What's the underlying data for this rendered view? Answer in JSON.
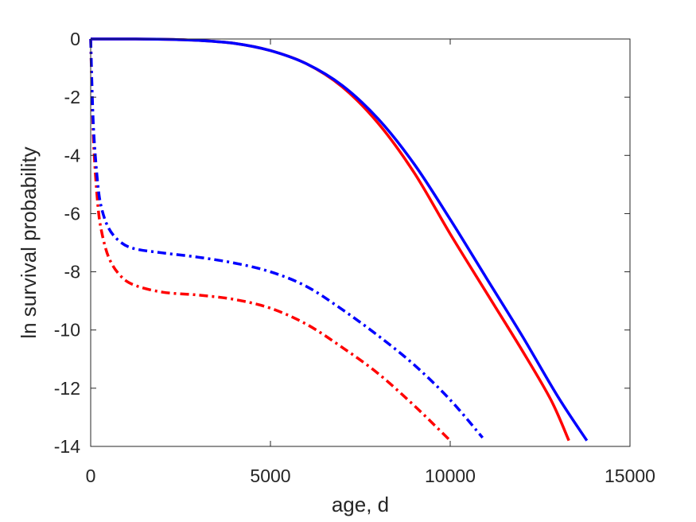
{
  "chart_data": {
    "type": "line",
    "title": "",
    "xlabel": "age, d",
    "ylabel": "ln survival probability",
    "xlim": [
      0,
      15000
    ],
    "ylim": [
      -14,
      0
    ],
    "x_ticks": [
      0,
      5000,
      10000,
      15000
    ],
    "x_tick_labels": [
      "0",
      "5000",
      "10000",
      "15000"
    ],
    "y_ticks": [
      0,
      -2,
      -4,
      -6,
      -8,
      -10,
      -12,
      -14
    ],
    "y_tick_labels": [
      "0",
      "-2",
      "-4",
      "-6",
      "-8",
      "-10",
      "-12",
      "-14"
    ],
    "grid": false,
    "box": true,
    "series": [
      {
        "color": "#ff0000",
        "style": "solid",
        "points": [
          [
            0,
            0
          ],
          [
            1000,
            0
          ],
          [
            2000,
            -0.01
          ],
          [
            3000,
            -0.05
          ],
          [
            4000,
            -0.15
          ],
          [
            5000,
            -0.4
          ],
          [
            6000,
            -0.85
          ],
          [
            7000,
            -1.65
          ],
          [
            8000,
            -2.9
          ],
          [
            9000,
            -4.6
          ],
          [
            10000,
            -6.7
          ],
          [
            11000,
            -8.7
          ],
          [
            12000,
            -10.7
          ],
          [
            12800,
            -12.4
          ],
          [
            13300,
            -13.8
          ]
        ]
      },
      {
        "color": "#0000ff",
        "style": "solid",
        "points": [
          [
            0,
            0
          ],
          [
            1000,
            0
          ],
          [
            2000,
            -0.01
          ],
          [
            3000,
            -0.05
          ],
          [
            4000,
            -0.15
          ],
          [
            5000,
            -0.4
          ],
          [
            6000,
            -0.85
          ],
          [
            7000,
            -1.6
          ],
          [
            8000,
            -2.75
          ],
          [
            9000,
            -4.3
          ],
          [
            10000,
            -6.2
          ],
          [
            11000,
            -8.2
          ],
          [
            12000,
            -10.2
          ],
          [
            13000,
            -12.3
          ],
          [
            13800,
            -13.8
          ]
        ]
      },
      {
        "color": "#ff0000",
        "style": "dashdot",
        "points": [
          [
            0,
            0
          ],
          [
            50,
            -2.5
          ],
          [
            100,
            -4.0
          ],
          [
            200,
            -5.7
          ],
          [
            300,
            -6.6
          ],
          [
            500,
            -7.5
          ],
          [
            800,
            -8.1
          ],
          [
            1200,
            -8.45
          ],
          [
            2000,
            -8.7
          ],
          [
            3000,
            -8.8
          ],
          [
            4000,
            -8.95
          ],
          [
            5000,
            -9.25
          ],
          [
            6000,
            -9.8
          ],
          [
            7000,
            -10.6
          ],
          [
            8000,
            -11.5
          ],
          [
            9000,
            -12.6
          ],
          [
            10000,
            -13.8
          ]
        ]
      },
      {
        "color": "#0000ff",
        "style": "dashdot",
        "points": [
          [
            0,
            0
          ],
          [
            50,
            -2.2
          ],
          [
            100,
            -3.5
          ],
          [
            200,
            -5.0
          ],
          [
            300,
            -5.8
          ],
          [
            500,
            -6.5
          ],
          [
            800,
            -6.95
          ],
          [
            1200,
            -7.2
          ],
          [
            2000,
            -7.35
          ],
          [
            3000,
            -7.5
          ],
          [
            4000,
            -7.7
          ],
          [
            5000,
            -8.0
          ],
          [
            6000,
            -8.5
          ],
          [
            7000,
            -9.3
          ],
          [
            8000,
            -10.2
          ],
          [
            9000,
            -11.2
          ],
          [
            10000,
            -12.4
          ],
          [
            10900,
            -13.7
          ]
        ]
      }
    ]
  }
}
